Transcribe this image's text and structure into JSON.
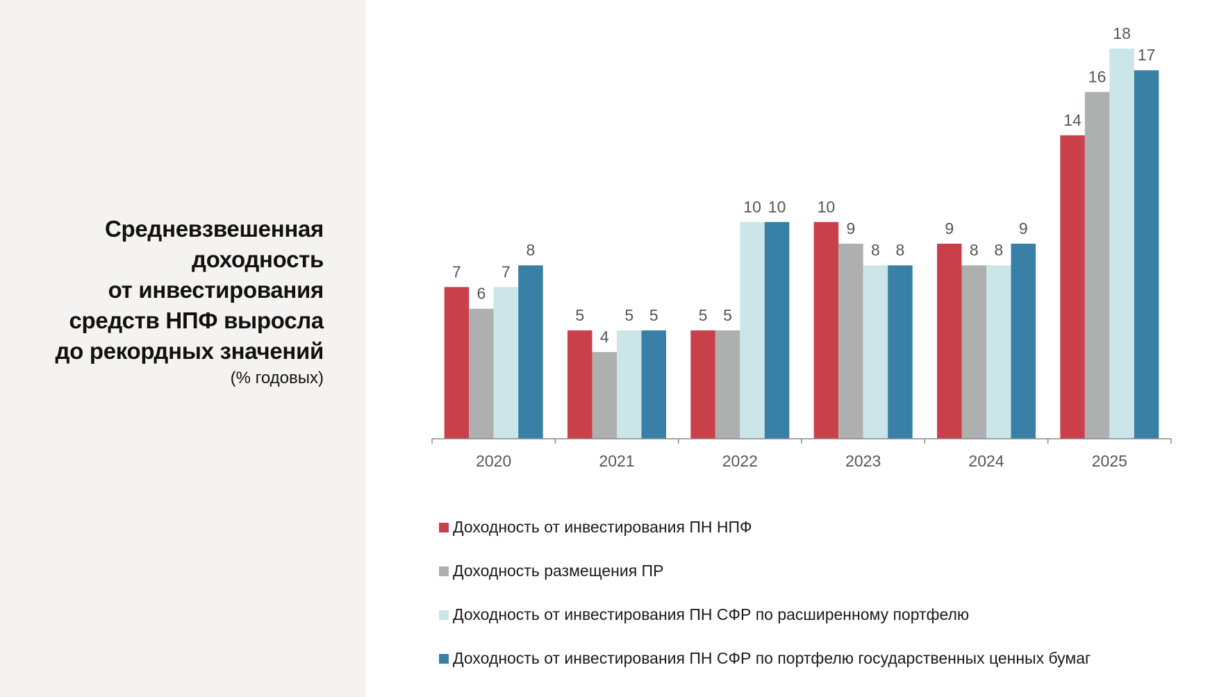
{
  "title": {
    "lines": [
      "Средневзвешенная",
      "доходность",
      "от инвестирования",
      "средств НПФ выросла",
      "до рекордных значений"
    ],
    "subtitle": "(% годовых)"
  },
  "colors": {
    "panel_bg": "#f4f3f2",
    "axis": "#888888"
  },
  "chart_data": {
    "type": "bar",
    "categories": [
      "2020",
      "2021",
      "2022",
      "2023",
      "2024",
      "2025"
    ],
    "ylim": [
      0,
      18.5
    ],
    "grid": false,
    "legend_position": "bottom",
    "series": [
      {
        "name": "Доходность от инвестирования ПН НПФ",
        "color": "#c9404a",
        "values": [
          7,
          5,
          5,
          10,
          9,
          14
        ],
        "labels": [
          "7",
          "5",
          "5",
          "10",
          "9",
          "14"
        ]
      },
      {
        "name": "Доходность размещения ПР",
        "color": "#aeb0b0",
        "values": [
          6,
          4,
          5,
          9,
          8,
          16
        ],
        "labels": [
          "6",
          "4",
          "5",
          "9",
          "8",
          "16"
        ]
      },
      {
        "name": "Доходность от инвестирования ПН СФР по расширенному портфелю",
        "color": "#cce5e9",
        "values": [
          7,
          5,
          10,
          8,
          8,
          18
        ],
        "labels": [
          "7",
          "5",
          "10",
          "8",
          "8",
          "18"
        ]
      },
      {
        "name": "Доходность от инвестирования ПН СФР по портфелю государственных ценных бумаг",
        "color": "#3880a5",
        "values": [
          8,
          5,
          10,
          8,
          9,
          17
        ],
        "labels": [
          "8",
          "5",
          "10",
          "8",
          "9",
          "17"
        ]
      }
    ]
  }
}
